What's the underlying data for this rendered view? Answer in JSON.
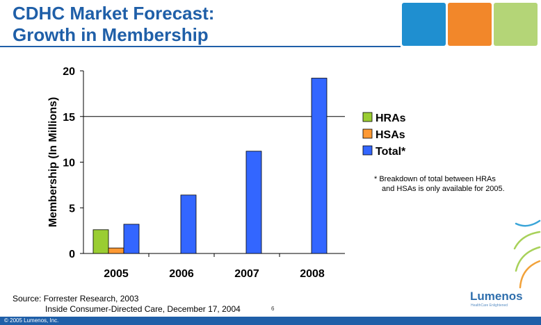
{
  "header": {
    "title_line1": "CDHC Market Forecast:",
    "title_line2": "Growth in Membership",
    "square_colors": [
      "#1f8fd0",
      "#f2872a",
      "#b4d577"
    ]
  },
  "chart_data": {
    "type": "bar",
    "categories": [
      "2005",
      "2006",
      "2007",
      "2008"
    ],
    "series": [
      {
        "name": "HRAs",
        "color": "#9acd32",
        "values": [
          2.6,
          null,
          null,
          null
        ]
      },
      {
        "name": "HSAs",
        "color": "#ff9933",
        "values": [
          0.6,
          null,
          null,
          null
        ]
      },
      {
        "name": "Total*",
        "color": "#3366ff",
        "values": [
          3.2,
          6.4,
          11.2,
          19.2
        ]
      }
    ],
    "ylabel": "Membership (In Millions)",
    "yticks": [
      0,
      5,
      10,
      15,
      20
    ],
    "ylim": [
      0,
      20
    ],
    "gridlines": [
      15
    ],
    "legend_position": "right",
    "footnote_line1": "* Breakdown of total between HRAs",
    "footnote_line2": "and HSAs is only available for 2005."
  },
  "footer": {
    "source_line1": "Source: Forrester Research, 2003",
    "source_line2": "Inside Consumer-Directed Care, December 17, 2004",
    "page_number": "6",
    "copyright": "© 2005 Lumenos, Inc.",
    "logo_name": "Lumenos",
    "logo_tagline": "HealthCare Enlightened",
    "logo_arc_colors": [
      "#3aa5d8",
      "#a8d15a",
      "#f2a23a"
    ]
  }
}
